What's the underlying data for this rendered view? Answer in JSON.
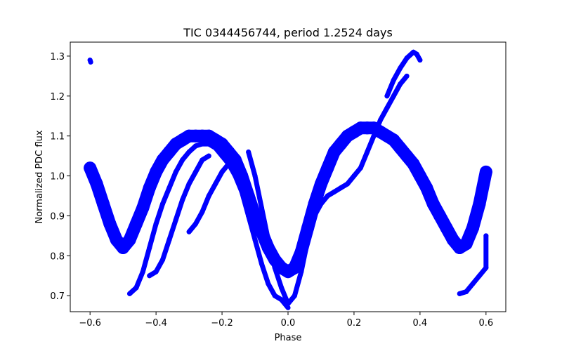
{
  "chart_data": {
    "type": "scatter",
    "title": "TIC 0344456744, period 1.2524 days",
    "xlabel": "Phase",
    "ylabel": "Normalized PDC flux",
    "xlim": [
      -0.66,
      0.66
    ],
    "ylim": [
      0.66,
      1.335
    ],
    "xticks": [
      -0.6,
      -0.4,
      -0.2,
      0.0,
      0.2,
      0.4,
      0.6
    ],
    "xtick_labels": [
      "−0.6",
      "−0.4",
      "−0.2",
      "0.0",
      "0.2",
      "0.4",
      "0.6"
    ],
    "yticks": [
      0.7,
      0.8,
      0.9,
      1.0,
      1.1,
      1.2,
      1.3
    ],
    "ytick_labels": [
      "0.7",
      "0.8",
      "0.9",
      "1.0",
      "1.1",
      "1.2",
      "1.3"
    ],
    "grid": false,
    "legend": "none",
    "color": "#0000ff",
    "series": [
      {
        "description_only": "main folded light curve band",
        "values": [
          [
            -0.6,
            1.02
          ],
          [
            -0.58,
            0.98
          ],
          [
            -0.56,
            0.93
          ],
          [
            -0.54,
            0.88
          ],
          [
            -0.52,
            0.84
          ],
          [
            -0.5,
            0.82
          ],
          [
            -0.48,
            0.84
          ],
          [
            -0.46,
            0.88
          ],
          [
            -0.44,
            0.92
          ],
          [
            -0.42,
            0.97
          ],
          [
            -0.4,
            1.01
          ],
          [
            -0.38,
            1.04
          ],
          [
            -0.36,
            1.06
          ],
          [
            -0.34,
            1.08
          ],
          [
            -0.32,
            1.09
          ],
          [
            -0.3,
            1.1
          ],
          [
            -0.28,
            1.1
          ],
          [
            -0.26,
            1.1
          ],
          [
            -0.24,
            1.1
          ],
          [
            -0.22,
            1.09
          ],
          [
            -0.2,
            1.08
          ],
          [
            -0.18,
            1.06
          ],
          [
            -0.16,
            1.04
          ],
          [
            -0.14,
            1.0
          ],
          [
            -0.12,
            0.95
          ],
          [
            -0.1,
            0.9
          ],
          [
            -0.08,
            0.86
          ],
          [
            -0.06,
            0.82
          ],
          [
            -0.04,
            0.79
          ],
          [
            -0.02,
            0.77
          ],
          [
            0.0,
            0.76
          ],
          [
            0.02,
            0.77
          ],
          [
            0.04,
            0.81
          ],
          [
            0.06,
            0.87
          ],
          [
            0.08,
            0.93
          ],
          [
            0.1,
            0.98
          ],
          [
            0.12,
            1.02
          ],
          [
            0.14,
            1.06
          ],
          [
            0.16,
            1.08
          ],
          [
            0.18,
            1.1
          ],
          [
            0.2,
            1.11
          ],
          [
            0.22,
            1.12
          ],
          [
            0.24,
            1.12
          ],
          [
            0.26,
            1.12
          ],
          [
            0.28,
            1.11
          ],
          [
            0.3,
            1.1
          ],
          [
            0.32,
            1.09
          ],
          [
            0.34,
            1.07
          ],
          [
            0.36,
            1.05
          ],
          [
            0.38,
            1.03
          ],
          [
            0.4,
            1.0
          ],
          [
            0.42,
            0.97
          ],
          [
            0.44,
            0.93
          ],
          [
            0.46,
            0.9
          ],
          [
            0.48,
            0.87
          ],
          [
            0.5,
            0.84
          ],
          [
            0.52,
            0.82
          ],
          [
            0.54,
            0.83
          ],
          [
            0.56,
            0.87
          ],
          [
            0.58,
            0.93
          ],
          [
            0.6,
            1.01
          ]
        ]
      },
      {
        "description_only": "deep secondary track",
        "values": [
          [
            -0.12,
            1.06
          ],
          [
            -0.1,
            1.0
          ],
          [
            -0.08,
            0.92
          ],
          [
            -0.06,
            0.84
          ],
          [
            -0.04,
            0.77
          ],
          [
            -0.02,
            0.72
          ],
          [
            0.0,
            0.68
          ],
          [
            0.02,
            0.7
          ],
          [
            0.04,
            0.76
          ],
          [
            0.06,
            0.84
          ],
          [
            0.08,
            0.9
          ],
          [
            0.1,
            0.93
          ],
          [
            0.12,
            0.95
          ],
          [
            0.14,
            0.96
          ],
          [
            0.16,
            0.97
          ],
          [
            0.18,
            0.98
          ],
          [
            0.2,
            1.0
          ],
          [
            0.22,
            1.02
          ],
          [
            0.24,
            1.06
          ],
          [
            0.26,
            1.1
          ],
          [
            0.28,
            1.14
          ],
          [
            0.3,
            1.17
          ],
          [
            0.32,
            1.2
          ],
          [
            0.34,
            1.23
          ],
          [
            0.36,
            1.25
          ]
        ]
      },
      {
        "description_only": "rising track left 1",
        "values": [
          [
            -0.48,
            0.705
          ],
          [
            -0.46,
            0.72
          ],
          [
            -0.44,
            0.76
          ],
          [
            -0.42,
            0.82
          ],
          [
            -0.4,
            0.88
          ],
          [
            -0.38,
            0.93
          ],
          [
            -0.36,
            0.97
          ],
          [
            -0.34,
            1.01
          ],
          [
            -0.32,
            1.04
          ],
          [
            -0.3,
            1.06
          ],
          [
            -0.28,
            1.075
          ],
          [
            -0.26,
            1.08
          ],
          [
            -0.24,
            1.08
          ],
          [
            -0.22,
            1.07
          ],
          [
            -0.2,
            1.05
          ],
          [
            -0.18,
            1.03
          ],
          [
            -0.16,
            1.0
          ],
          [
            -0.14,
            0.96
          ],
          [
            -0.12,
            0.9
          ],
          [
            -0.1,
            0.84
          ],
          [
            -0.08,
            0.78
          ],
          [
            -0.06,
            0.73
          ],
          [
            -0.04,
            0.7
          ],
          [
            -0.02,
            0.69
          ],
          [
            0.0,
            0.67
          ]
        ]
      },
      {
        "description_only": "rising track left 2",
        "values": [
          [
            -0.42,
            0.75
          ],
          [
            -0.4,
            0.76
          ],
          [
            -0.38,
            0.79
          ],
          [
            -0.36,
            0.84
          ],
          [
            -0.34,
            0.89
          ],
          [
            -0.32,
            0.94
          ],
          [
            -0.3,
            0.98
          ],
          [
            -0.28,
            1.01
          ],
          [
            -0.26,
            1.04
          ],
          [
            -0.24,
            1.05
          ]
        ]
      },
      {
        "description_only": "rising track left 3",
        "values": [
          [
            -0.3,
            0.86
          ],
          [
            -0.28,
            0.88
          ],
          [
            -0.26,
            0.91
          ],
          [
            -0.24,
            0.95
          ],
          [
            -0.22,
            0.98
          ],
          [
            -0.2,
            1.01
          ],
          [
            -0.18,
            1.03
          ]
        ]
      },
      {
        "description_only": "peak arc right",
        "values": [
          [
            0.3,
            1.2
          ],
          [
            0.32,
            1.24
          ],
          [
            0.34,
            1.27
          ],
          [
            0.36,
            1.295
          ],
          [
            0.38,
            1.31
          ],
          [
            0.39,
            1.305
          ],
          [
            0.4,
            1.29
          ]
        ]
      },
      {
        "description_only": "right low tail",
        "values": [
          [
            0.52,
            0.705
          ],
          [
            0.54,
            0.71
          ],
          [
            0.56,
            0.73
          ],
          [
            0.58,
            0.75
          ],
          [
            0.6,
            0.77
          ],
          [
            0.6,
            0.85
          ]
        ]
      },
      {
        "description_only": "outlier high left",
        "values": [
          [
            -0.6,
            1.29
          ],
          [
            -0.598,
            1.285
          ]
        ]
      }
    ]
  }
}
